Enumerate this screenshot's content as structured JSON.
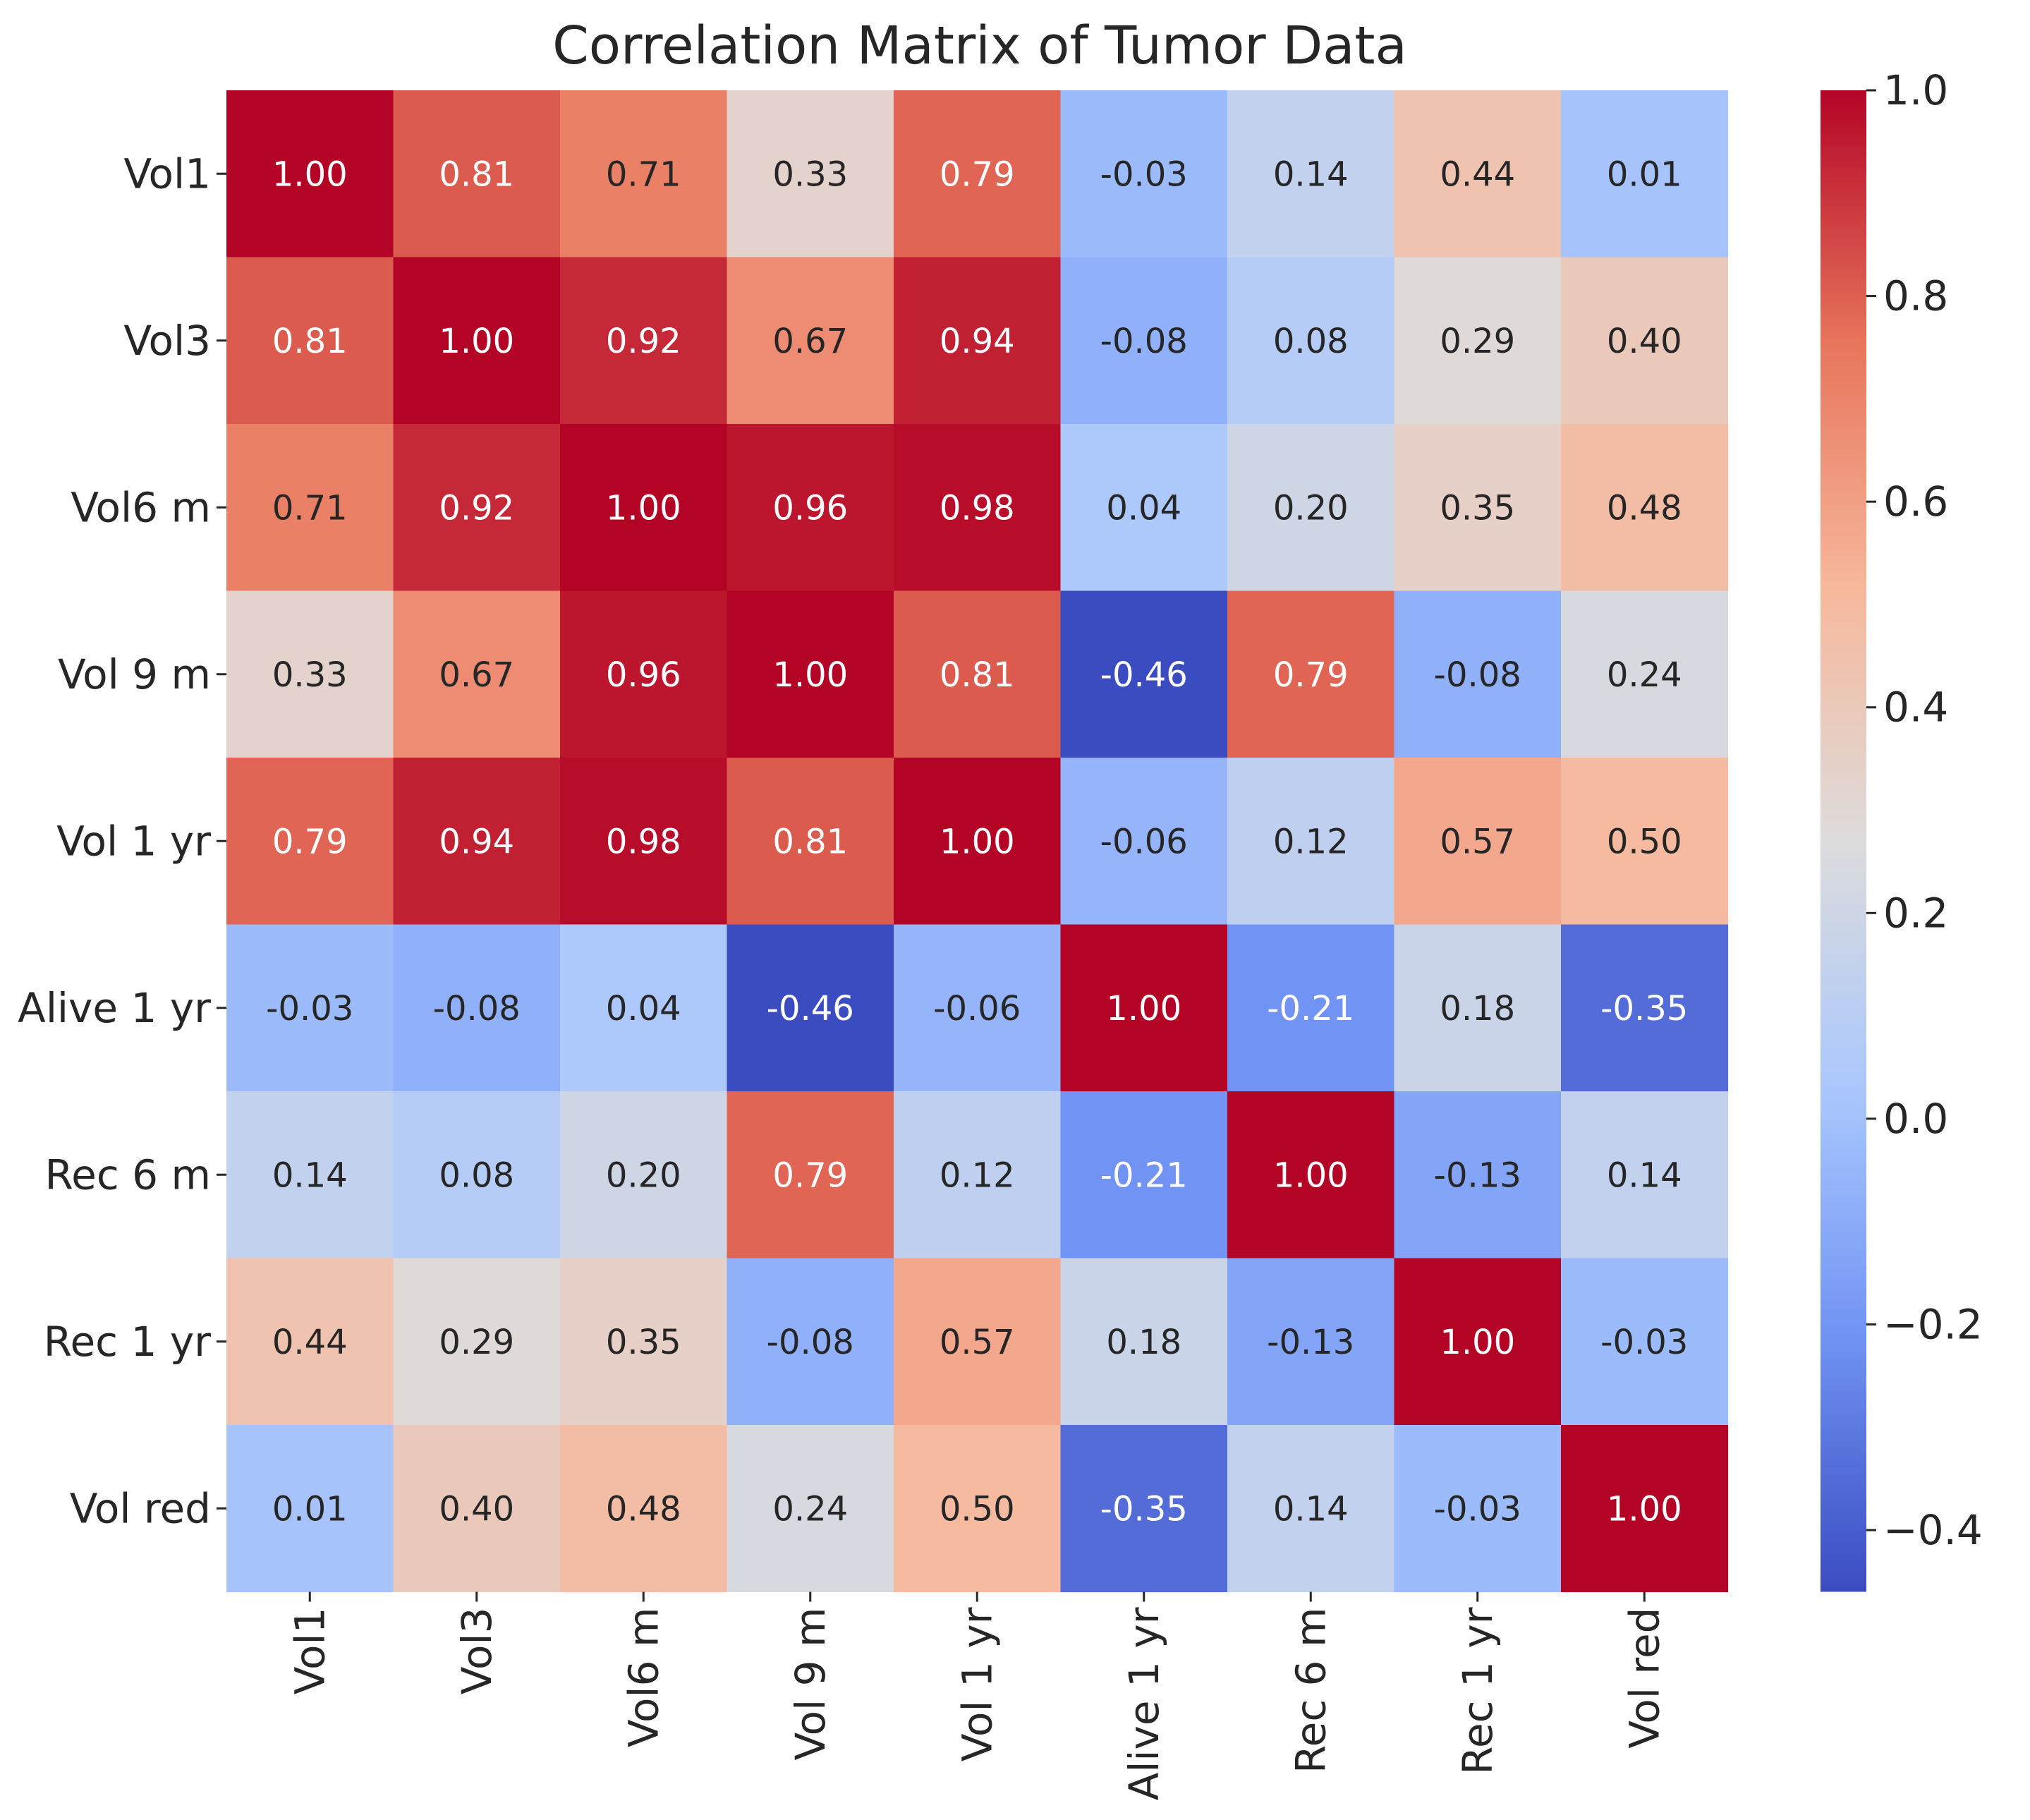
{
  "chart_data": {
    "type": "heatmap",
    "title": "Correlation Matrix of Tumor Data",
    "xlabel": "",
    "ylabel": "",
    "row_labels": [
      "Vol1",
      "Vol3",
      "Vol6 m",
      "Vol 9 m",
      "Vol 1 yr",
      "Alive 1 yr",
      "Rec 6 m",
      "Rec 1 yr",
      "Vol red"
    ],
    "col_labels": [
      "Vol1",
      "Vol3",
      "Vol6 m",
      "Vol 9 m",
      "Vol 1 yr",
      "Alive 1 yr",
      "Rec 6 m",
      "Rec 1 yr",
      "Vol red"
    ],
    "values": [
      [
        1.0,
        0.81,
        0.71,
        0.33,
        0.79,
        -0.03,
        0.14,
        0.44,
        0.01
      ],
      [
        0.81,
        1.0,
        0.92,
        0.67,
        0.94,
        -0.08,
        0.08,
        0.29,
        0.4
      ],
      [
        0.71,
        0.92,
        1.0,
        0.96,
        0.98,
        0.04,
        0.2,
        0.35,
        0.48
      ],
      [
        0.33,
        0.67,
        0.96,
        1.0,
        0.81,
        -0.46,
        0.79,
        -0.08,
        0.24
      ],
      [
        0.79,
        0.94,
        0.98,
        0.81,
        1.0,
        -0.06,
        0.12,
        0.57,
        0.5
      ],
      [
        -0.03,
        -0.08,
        0.04,
        -0.46,
        -0.06,
        1.0,
        -0.21,
        0.18,
        -0.35
      ],
      [
        0.14,
        0.08,
        0.2,
        0.79,
        0.12,
        -0.21,
        1.0,
        -0.13,
        0.14
      ],
      [
        0.44,
        0.29,
        0.35,
        -0.08,
        0.57,
        0.18,
        -0.13,
        1.0,
        -0.03
      ],
      [
        0.01,
        0.4,
        0.48,
        0.24,
        0.5,
        -0.35,
        0.14,
        -0.03,
        1.0
      ]
    ],
    "value_format": "2 decimals",
    "colormap": "coolwarm",
    "colormap_stops": [
      "#3b4cc0",
      "#6f92f3",
      "#aac7fd",
      "#dddcdc",
      "#f7b89c",
      "#e7745b",
      "#b40426"
    ],
    "vmin": -0.46,
    "vmax": 1.0,
    "colorbar_ticks": [
      1.0,
      0.8,
      0.6,
      0.4,
      0.2,
      0.0,
      -0.2,
      -0.4
    ],
    "colorbar_tick_labels": [
      "1.0",
      "0.8",
      "0.6",
      "0.4",
      "0.2",
      "0.0",
      "−0.2",
      "−0.4"
    ],
    "grid": false,
    "legend": "colorbar right"
  }
}
